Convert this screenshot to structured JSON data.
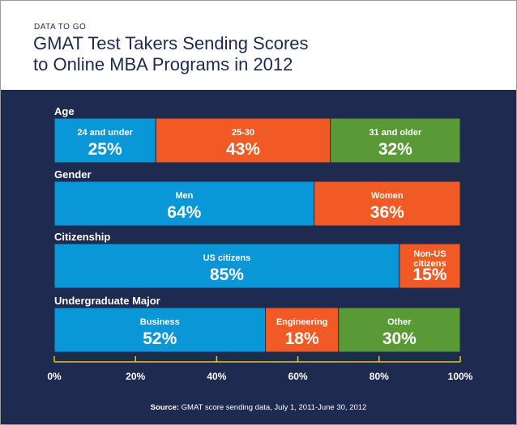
{
  "header": {
    "kicker": "DATA TO GO",
    "title_line1": "GMAT Test Takers Sending Scores",
    "title_line2": "to Online MBA Programs in 2012"
  },
  "colors": {
    "background": "#1e2a4f",
    "blue": "#0997d8",
    "orange": "#f15a24",
    "green": "#5a9a36",
    "axis": "#f0c419"
  },
  "chart_data": {
    "type": "bar",
    "orientation": "horizontal",
    "stacked": "100%",
    "xlim": [
      0,
      100
    ],
    "x_ticks": [
      "0%",
      "20%",
      "40%",
      "60%",
      "80%",
      "100%"
    ],
    "groups": [
      {
        "label": "Age",
        "segments": [
          {
            "name": "24 and under",
            "value": 25,
            "value_label": "25%",
            "color": "#0997d8"
          },
          {
            "name": "25-30",
            "value": 43,
            "value_label": "43%",
            "color": "#f15a24"
          },
          {
            "name": "31 and older",
            "value": 32,
            "value_label": "32%",
            "color": "#5a9a36"
          }
        ]
      },
      {
        "label": "Gender",
        "segments": [
          {
            "name": "Men",
            "value": 64,
            "value_label": "64%",
            "color": "#0997d8"
          },
          {
            "name": "Women",
            "value": 36,
            "value_label": "36%",
            "color": "#f15a24"
          }
        ]
      },
      {
        "label": "Citizenship",
        "segments": [
          {
            "name": "US citizens",
            "value": 85,
            "value_label": "85%",
            "color": "#0997d8"
          },
          {
            "name": "Non-US citizens",
            "name_lines": [
              "Non-US",
              "citizens"
            ],
            "value": 15,
            "value_label": "15%",
            "color": "#f15a24"
          }
        ]
      },
      {
        "label": "Undergraduate Major",
        "segments": [
          {
            "name": "Business",
            "value": 52,
            "value_label": "52%",
            "color": "#0997d8"
          },
          {
            "name": "Engineering",
            "value": 18,
            "value_label": "18%",
            "color": "#f15a24"
          },
          {
            "name": "Other",
            "value": 30,
            "value_label": "30%",
            "color": "#5a9a36"
          }
        ]
      }
    ]
  },
  "source": {
    "label": "Source:",
    "text": " GMAT score sending data, July 1, 2011-June 30, 2012"
  }
}
